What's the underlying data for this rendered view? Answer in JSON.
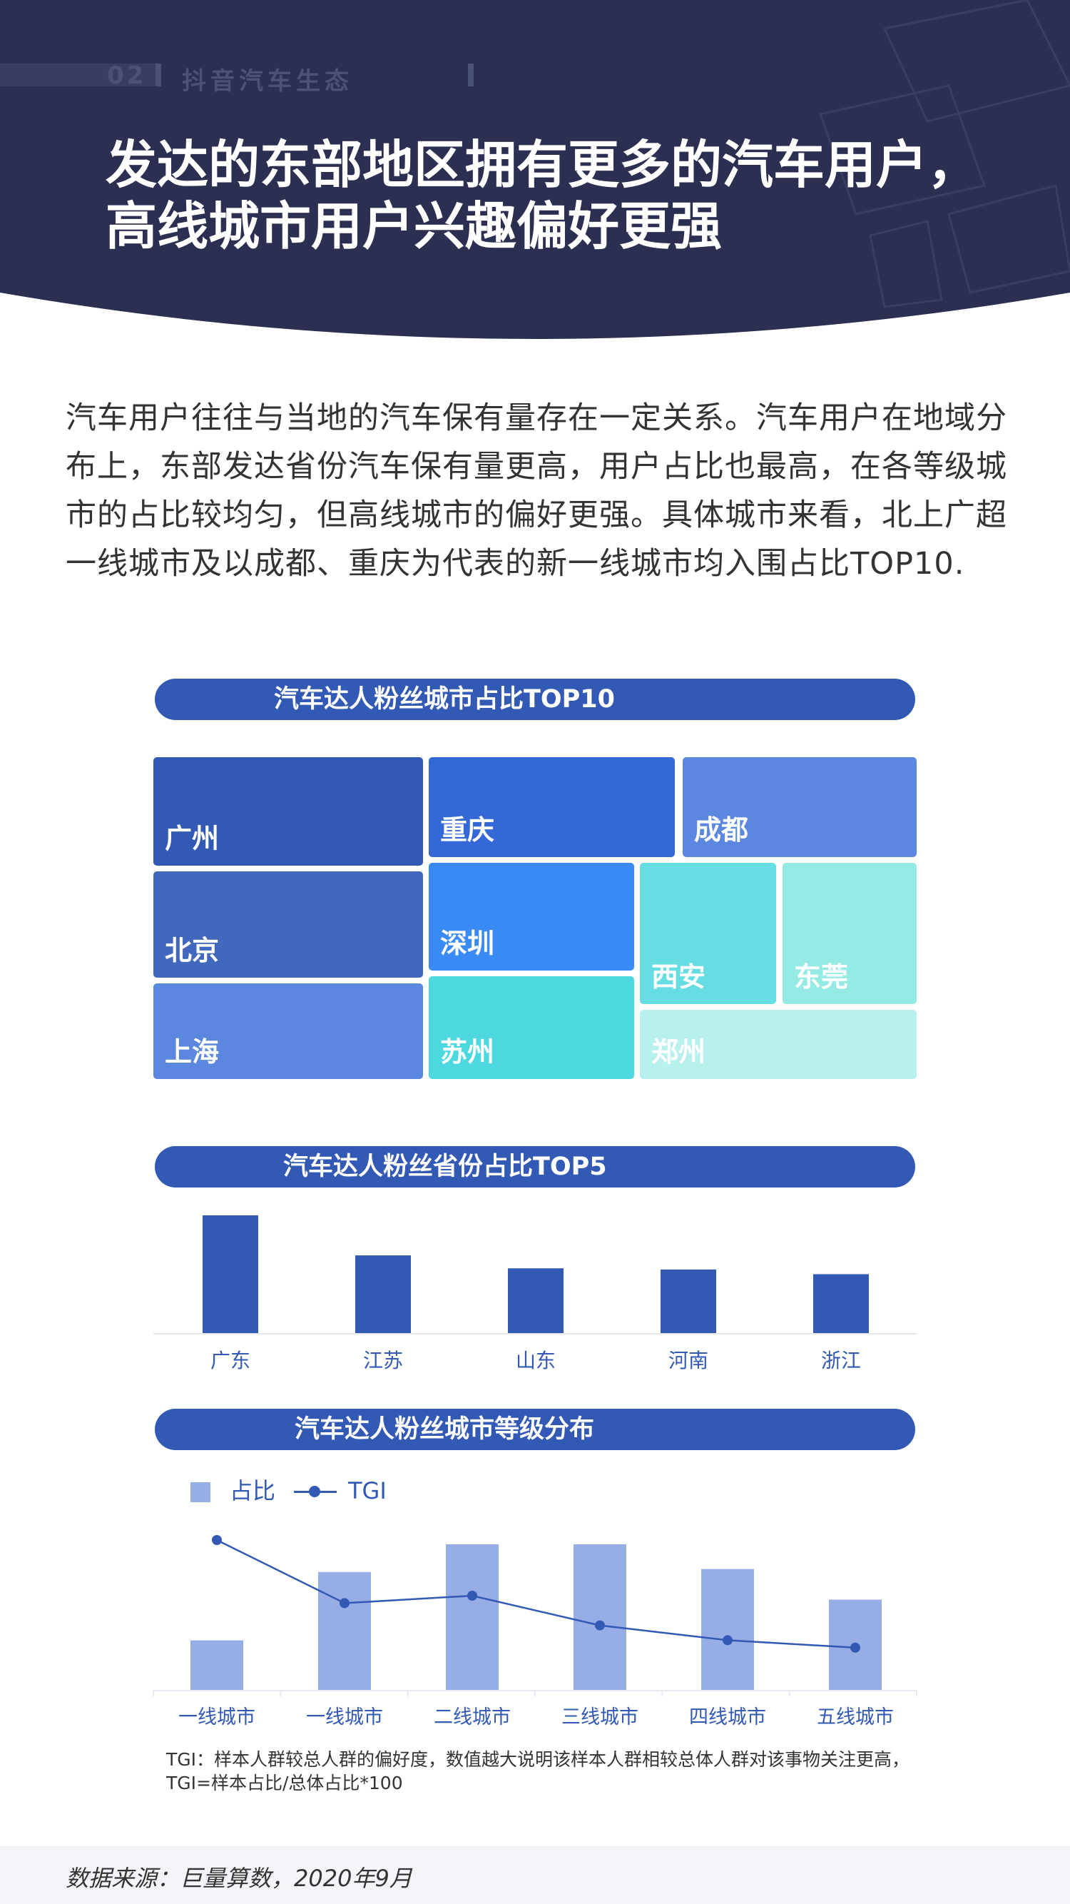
{
  "header": {
    "section_number": "02",
    "section_label": "抖音汽车生态",
    "title_line1": "发达的东部地区拥有更多的汽车用户，",
    "title_line2": "高线城市用户兴趣偏好更强",
    "colors": {
      "background": "#2d2f52",
      "accent": "#3259b4"
    }
  },
  "intro": {
    "text": "汽车用户往往与当地的汽车保有量存在一定关系。汽车用户在地域分布上，东部发达省份汽车保有量更高，用户占比也最高，在各等级城市的占比较均匀，但高线城市的偏好更强。具体城市来看，北上广超一线城市及以成都、重庆为代表的新一线城市均入围占比TOP10."
  },
  "chart_data": [
    {
      "type": "treemap",
      "title": "汽车达人粉丝城市占比TOP10",
      "categories": [
        "广州",
        "重庆",
        "成都",
        "北京",
        "深圳",
        "西安",
        "东莞",
        "上海",
        "苏州",
        "郑州"
      ],
      "colors": [
        "#3259b4",
        "#3468d6",
        "#5b88de",
        "#4268bd",
        "#3a8af5",
        "#65dde3",
        "#95ebe4",
        "#5b88de",
        "#4dd8e0",
        "#b8f0ee"
      ]
    },
    {
      "type": "bar",
      "title": "汽车达人粉丝省份占比TOP5",
      "categories": [
        "广东",
        "江苏",
        "山东",
        "河南",
        "浙江"
      ],
      "values": [
        100,
        66,
        55,
        54,
        50
      ],
      "color": "#3259b4"
    },
    {
      "type": "bar+line",
      "title": "汽车达人粉丝城市等级分布",
      "categories": [
        "一线城市",
        "一线城市",
        "二线城市",
        "三线城市",
        "四线城市",
        "五线城市"
      ],
      "series": [
        {
          "name": "占比",
          "type": "bar",
          "values": [
            34,
            81,
            100,
            100,
            83,
            62
          ],
          "color": "#97ade6"
        },
        {
          "name": "TGI",
          "type": "line",
          "values": [
            100,
            83,
            85,
            77,
            73,
            71
          ],
          "color": "#3259b4"
        }
      ]
    }
  ],
  "note": {
    "line1": "TGI：样本人群较总人群的偏好度，数值越大说明该样本人群相较总体人群对该事物关注更高，",
    "line2": "TGI=样本占比/总体占比*100"
  },
  "footer": {
    "source": "数据来源：巨量算数，2020年9月"
  }
}
